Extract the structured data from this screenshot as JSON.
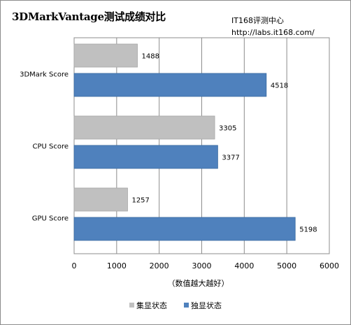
{
  "watermark": {
    "line1": "IT168评测中心",
    "line2": "http://labs.it168.com/"
  },
  "chart_data": {
    "type": "bar",
    "orientation": "horizontal",
    "title": "3DMarkVantage测试成绩对比",
    "xlabel": "（数值越大越好）",
    "ylabel": "",
    "categories": [
      "3DMark Score",
      "CPU Score",
      "GPU Score"
    ],
    "series": [
      {
        "name": "集显状态",
        "values": [
          1488,
          3305,
          1257
        ],
        "color": "#c0c0c0"
      },
      {
        "name": "独显状态",
        "values": [
          4518,
          3377,
          5198
        ],
        "color": "#4f81bd"
      }
    ],
    "xlim": [
      0,
      6000
    ],
    "xticks": [
      0,
      1000,
      2000,
      3000,
      4000,
      5000,
      6000
    ],
    "grid": "vertical",
    "legend": "bottom"
  }
}
